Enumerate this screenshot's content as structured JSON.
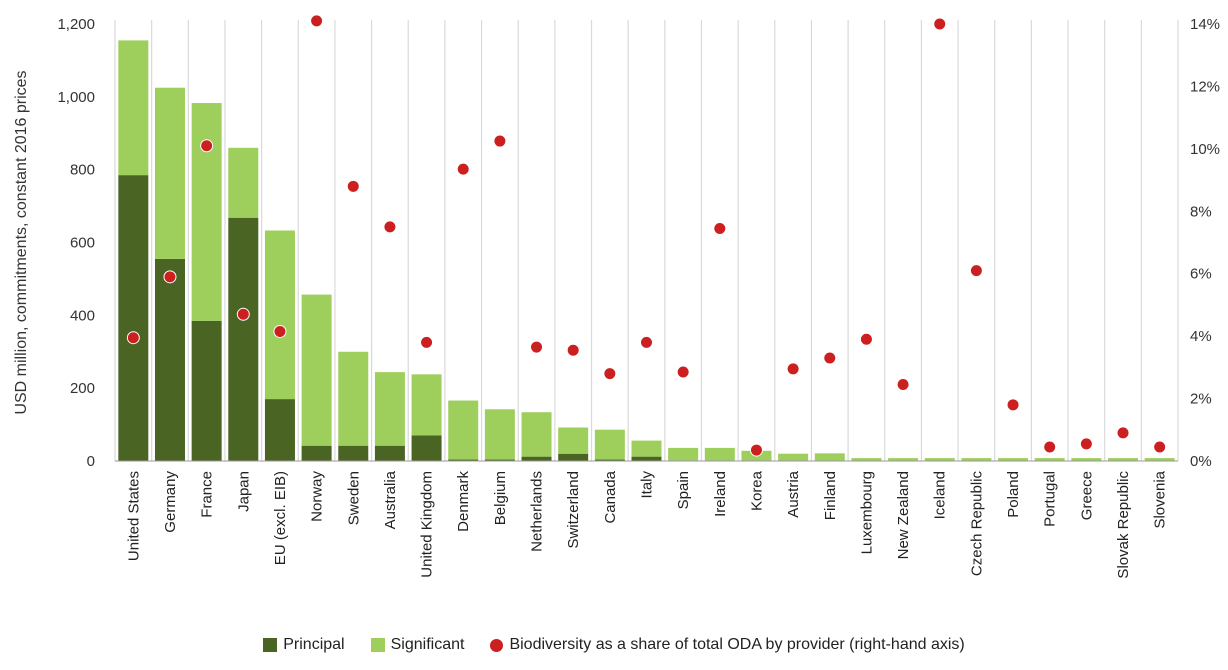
{
  "colors": {
    "principal": "#4a6424",
    "significant": "#9ecf5c",
    "share": "#cc1f1f",
    "divider": "#d9d9d9"
  },
  "chart_data": {
    "type": "bar",
    "stacked": true,
    "ylabel": "USD million, commitments, constant 2016 prices",
    "ylim": [
      0,
      1200
    ],
    "yticks": [
      "0",
      "200",
      "400",
      "600",
      "800",
      "1,000",
      "1,200"
    ],
    "y2lim": [
      0,
      14
    ],
    "y2ticks": [
      "0%",
      "2%",
      "4%",
      "6%",
      "8%",
      "10%",
      "12%",
      "14%"
    ],
    "categories": [
      "United States",
      "Germany",
      "France",
      "Japan",
      "EU (excl. EIB)",
      "Norway",
      "Sweden",
      "Australia",
      "United Kingdom",
      "Denmark",
      "Belgium",
      "Netherlands",
      "Switzerland",
      "Canada",
      "Italy",
      "Spain",
      "Ireland",
      "Korea",
      "Austria",
      "Finland",
      "Luxembourg",
      "New Zealand",
      "Iceland",
      "Czech Republic",
      "Poland",
      "Portugal",
      "Greece",
      "Slovak Republic",
      "Slovenia"
    ],
    "series": [
      {
        "name": "Principal",
        "axis": "left",
        "kind": "bar",
        "values": [
          785,
          555,
          385,
          668,
          170,
          42,
          42,
          42,
          70,
          4,
          4,
          12,
          20,
          4,
          12,
          2,
          2,
          2,
          2,
          1,
          1,
          1,
          1,
          1,
          1,
          1,
          1,
          1,
          1
        ]
      },
      {
        "name": "Significant",
        "axis": "left",
        "kind": "bar",
        "values": [
          370,
          470,
          598,
          192,
          463,
          415,
          258,
          202,
          168,
          162,
          138,
          122,
          72,
          82,
          44,
          34,
          34,
          26,
          18,
          20,
          7,
          7,
          7,
          7,
          7,
          7,
          7,
          7,
          7
        ]
      },
      {
        "name": "Biodiversity as a share of total ODA by provider (right-hand axis)",
        "axis": "right",
        "kind": "point",
        "values": [
          3.95,
          5.9,
          10.1,
          4.7,
          4.15,
          14.1,
          8.8,
          7.5,
          3.8,
          9.35,
          10.25,
          3.65,
          3.55,
          2.8,
          3.8,
          2.85,
          7.45,
          0.35,
          2.95,
          3.3,
          3.9,
          2.45,
          14.0,
          6.1,
          1.8,
          0.45,
          0.55,
          0.9,
          0.45
        ]
      }
    ]
  },
  "legend": {
    "principal": "Principal",
    "significant": "Significant",
    "share": "Biodiversity as a share of total ODA by provider (right-hand axis)"
  }
}
